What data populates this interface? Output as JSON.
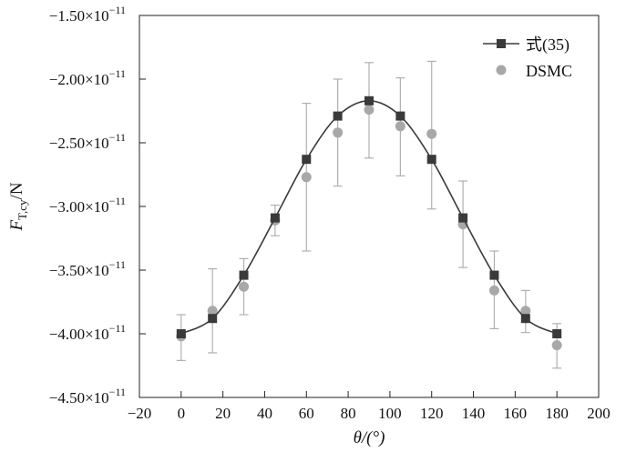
{
  "chart_data": {
    "type": "line",
    "xlabel": "θ/(°)",
    "ylabel": "F_T,cy/N",
    "xlim": [
      -20,
      200
    ],
    "ylim": [
      -4.5e-11,
      -1.5e-11
    ],
    "xticks": [
      -20,
      0,
      20,
      40,
      60,
      80,
      100,
      120,
      140,
      160,
      180,
      200
    ],
    "yticks": [
      -4.5e-11,
      -4e-11,
      -3.5e-11,
      -3e-11,
      -2.5e-11,
      -2e-11,
      -1.5e-11
    ],
    "ytick_labels": [
      "−4.50×10",
      "−4.00×10",
      "−3.50×10",
      "−3.00×10",
      "−2.50×10",
      "−2.00×10",
      "−1.50×10"
    ],
    "ytick_exponent": "−11",
    "legend_position": "top-right",
    "grid": false,
    "series": [
      {
        "name": "式(35)",
        "style": "line-square",
        "color": "#3a3a3a",
        "x": [
          0,
          15,
          30,
          45,
          60,
          75,
          90,
          105,
          120,
          135,
          150,
          165,
          180
        ],
        "y": [
          -4e-11,
          -3.88e-11,
          -3.54e-11,
          -3.09e-11,
          -2.63e-11,
          -2.29e-11,
          -2.17e-11,
          -2.29e-11,
          -2.63e-11,
          -3.09e-11,
          -3.54e-11,
          -3.88e-11,
          -4e-11
        ]
      },
      {
        "name": "DSMC",
        "style": "scatter-errorbar",
        "color": "#a8a8a8",
        "x": [
          0,
          15,
          30,
          45,
          60,
          75,
          90,
          105,
          120,
          135,
          150,
          165,
          180
        ],
        "y": [
          -4.02e-11,
          -3.82e-11,
          -3.63e-11,
          -3.11e-11,
          -2.77e-11,
          -2.42e-11,
          -2.24e-11,
          -2.37e-11,
          -2.43e-11,
          -3.14e-11,
          -3.66e-11,
          -3.82e-11,
          -4.09e-11
        ],
        "yerr_low": [
          -4.21e-11,
          -4.15e-11,
          -3.85e-11,
          -3.23e-11,
          -3.35e-11,
          -2.84e-11,
          -2.62e-11,
          -2.76e-11,
          -3.02e-11,
          -3.48e-11,
          -3.96e-11,
          -3.99e-11,
          -4.27e-11
        ],
        "yerr_high": [
          -3.85e-11,
          -3.49e-11,
          -3.41e-11,
          -2.99e-11,
          -2.19e-11,
          -2e-11,
          -1.87e-11,
          -1.99e-11,
          -1.86e-11,
          -2.8e-11,
          -3.35e-11,
          -3.66e-11,
          -3.92e-11
        ]
      }
    ]
  }
}
